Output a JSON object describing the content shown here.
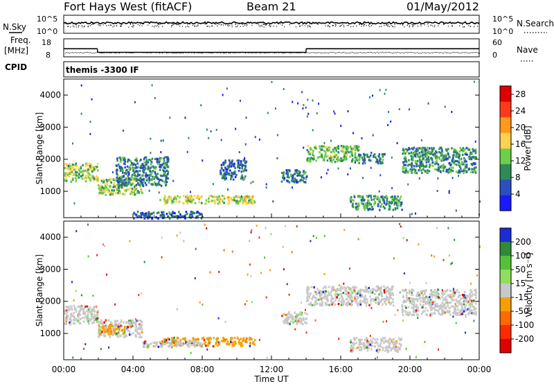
{
  "header": {
    "station": "Fort Hays West (fitACF)",
    "beam": "Beam 21",
    "date": "01/May/2012"
  },
  "noise_panel": {
    "left_label": "N.Sky",
    "right_label": "N.Search",
    "left_ticks": [
      "10^5",
      "10^0"
    ],
    "right_ticks": [
      "10^5",
      "10^0"
    ]
  },
  "freq_panel": {
    "left_label_1": "Freq.",
    "left_label_2": "[MHz]",
    "right_label": "Nave",
    "left_ticks": [
      "18",
      "8"
    ],
    "right_ticks": [
      "60",
      "0"
    ],
    "freq_segments_mhz": [
      {
        "from_hour": 0,
        "to_hour": 1.95,
        "value": 12.5
      },
      {
        "from_hour": 1.95,
        "to_hour": 14.0,
        "value": 10.5
      },
      {
        "from_hour": 14.0,
        "to_hour": 24.0,
        "value": 12.5
      }
    ],
    "nave_mean": 15
  },
  "cpid": {
    "label": "CPID",
    "value": "themis -3300 IF"
  },
  "chart_data": [
    {
      "type": "heatmap",
      "name_label": "Power [dB]",
      "ylabel": "Slant Range [km]",
      "xlabel": "Time UT",
      "x_ticks": [
        "00:00",
        "04:00",
        "08:00",
        "12:00",
        "16:00",
        "20:00",
        "00:00"
      ],
      "xlim_hours": [
        0,
        24
      ],
      "y_ticks": [
        "1000",
        "2000",
        "3000",
        "4000"
      ],
      "ylim_km": [
        180,
        4500
      ],
      "colorbar_ticks": [
        "4",
        "8",
        "12",
        "16",
        "20",
        "24",
        "28"
      ],
      "colorbar_range": [
        0,
        30
      ],
      "colorbar_colors": [
        "#1a1aff",
        "#2b4fc0",
        "#2e8b57",
        "#6ccf4a",
        "#ffd24d",
        "#ff9a1a",
        "#ff3a1a",
        "#e00000"
      ],
      "echo_regions": [
        {
          "t0": 0.0,
          "t1": 1.95,
          "r0": 1330,
          "r1": 1900,
          "level": 14
        },
        {
          "t0": 1.95,
          "t1": 4.5,
          "r0": 920,
          "r1": 1450,
          "level": 13
        },
        {
          "t0": 3.0,
          "t1": 6.0,
          "r0": 1200,
          "r1": 2100,
          "level": 7
        },
        {
          "t0": 5.5,
          "t1": 11.0,
          "r0": 640,
          "r1": 900,
          "level": 15
        },
        {
          "t0": 4.0,
          "t1": 8.0,
          "r0": 180,
          "r1": 400,
          "level": 6
        },
        {
          "t0": 9.0,
          "t1": 10.5,
          "r0": 1400,
          "r1": 2000,
          "level": 6
        },
        {
          "t0": 12.5,
          "t1": 14.0,
          "r0": 1300,
          "r1": 1700,
          "level": 7
        },
        {
          "t0": 14.0,
          "t1": 17.0,
          "r0": 1950,
          "r1": 2450,
          "level": 12
        },
        {
          "t0": 17.0,
          "t1": 18.5,
          "r0": 1900,
          "r1": 2200,
          "level": 7
        },
        {
          "t0": 16.5,
          "t1": 19.5,
          "r0": 450,
          "r1": 900,
          "level": 9
        },
        {
          "t0": 19.5,
          "t1": 23.8,
          "r0": 1600,
          "r1": 2400,
          "level": 9
        }
      ]
    },
    {
      "type": "heatmap",
      "name_label": "Velocity [m s⁻¹]",
      "ylabel": "Slant Range [km]",
      "xlabel": "Time UT",
      "x_ticks": [
        "00:00",
        "04:00",
        "08:00",
        "12:00",
        "16:00",
        "20:00",
        "00:00"
      ],
      "xlim_hours": [
        0,
        24
      ],
      "y_ticks": [
        "1000",
        "2000",
        "3000",
        "4000"
      ],
      "ylim_km": [
        180,
        4500
      ],
      "colorbar_ticks": [
        "200",
        "100",
        "50",
        "15",
        "-15",
        "-50",
        "-100",
        "-200"
      ],
      "colorbar_colors": [
        "#1c2bd8",
        "#2f8a3a",
        "#55c13a",
        "#8ee05a",
        "#c8c8c8",
        "#f5a000",
        "#ff6a00",
        "#ff2a00",
        "#e00000"
      ],
      "echo_regions": [
        {
          "t0": 0.0,
          "t1": 1.95,
          "r0": 1330,
          "r1": 1900,
          "color": "#c8c8c8"
        },
        {
          "t0": 1.95,
          "t1": 4.5,
          "r0": 920,
          "r1": 1450,
          "color": "#c8c8c8"
        },
        {
          "t0": 2.0,
          "t1": 3.5,
          "r0": 1000,
          "r1": 1300,
          "color": "#f5a000"
        },
        {
          "t0": 5.5,
          "t1": 11.0,
          "r0": 640,
          "r1": 900,
          "color": "#f5a000"
        },
        {
          "t0": 4.5,
          "t1": 8.0,
          "r0": 600,
          "r1": 800,
          "color": "#c8c8c8"
        },
        {
          "t0": 12.5,
          "t1": 14.0,
          "r0": 1300,
          "r1": 1700,
          "color": "#c8c8c8"
        },
        {
          "t0": 14.0,
          "t1": 19.0,
          "r0": 1900,
          "r1": 2500,
          "color": "#c8c8c8"
        },
        {
          "t0": 16.5,
          "t1": 19.5,
          "r0": 450,
          "r1": 900,
          "color": "#c8c8c8"
        },
        {
          "t0": 19.5,
          "t1": 23.8,
          "r0": 1600,
          "r1": 2400,
          "color": "#c8c8c8"
        }
      ]
    }
  ]
}
